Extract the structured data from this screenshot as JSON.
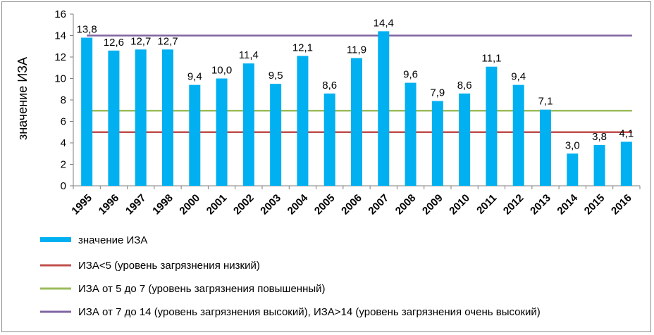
{
  "chart_data": {
    "type": "bar",
    "ylabel": "значение ИЗА",
    "xlabel": "",
    "ylim": [
      0,
      16
    ],
    "yticks": [
      0,
      2,
      4,
      6,
      8,
      10,
      12,
      14,
      16
    ],
    "grid": false,
    "categories": [
      "1995",
      "1996",
      "1997",
      "1998",
      "2000",
      "2001",
      "2002",
      "2003",
      "2004",
      "2005",
      "2006",
      "2007",
      "2008",
      "2009",
      "2010",
      "2011",
      "2012",
      "2013",
      "2014",
      "2015",
      "2016"
    ],
    "series": [
      {
        "name": "значение ИЗА",
        "color": "#00b0f0",
        "values": [
          13.8,
          12.6,
          12.7,
          12.7,
          9.4,
          10.0,
          11.4,
          9.5,
          12.1,
          8.6,
          11.9,
          14.4,
          9.6,
          7.9,
          8.6,
          11.1,
          9.4,
          7.1,
          3.0,
          3.8,
          4.1
        ],
        "labels": [
          "13,8",
          "12,6",
          "12,7",
          "12,7",
          "9,4",
          "10,0",
          "11,4",
          "9,5",
          "12,1",
          "8,6",
          "11,9",
          "14,4",
          "9,6",
          "7,9",
          "8,6",
          "11,1",
          "9,4",
          "7,1",
          "3,0",
          "3,8",
          "4,1"
        ]
      }
    ],
    "reference_lines": [
      {
        "name": "ИЗА<5 (уровень загрязнения низкий)",
        "value": 5,
        "color": "#c0504d"
      },
      {
        "name": "ИЗА от 5 до 7 (уровень загрязнения повышенный)",
        "value": 7,
        "color": "#9bbb59"
      },
      {
        "name": "ИЗА от 7 до 14 (уровень загрязнения высокий), ИЗА>14 (уровень загрязнения очень высокий)",
        "value": 14,
        "color": "#8064a2"
      }
    ],
    "legend_placement": "bottom"
  }
}
